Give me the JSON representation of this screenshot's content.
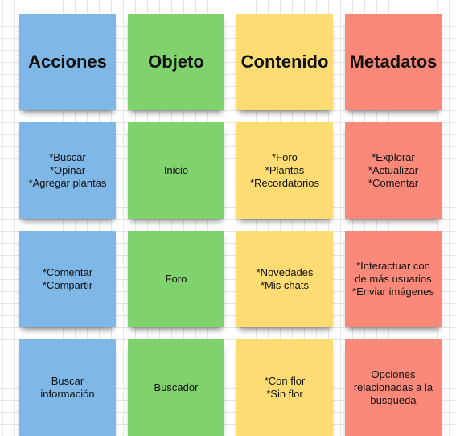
{
  "columns": {
    "acciones": {
      "header": "Acciones",
      "notes": [
        "*Buscar\n*Opinar\n*Agregar plantas",
        "*Comentar\n*Compartir",
        "Buscar\ninformación"
      ]
    },
    "objeto": {
      "header": "Objeto",
      "notes": [
        "Inicio",
        "Foro",
        "Buscador"
      ]
    },
    "contenido": {
      "header": "Contenido",
      "notes": [
        "*Foro\n*Plantas\n*Recordatorios",
        "*Novedades\n*Mis chats",
        "*Con flor\n*Sin flor"
      ]
    },
    "metadatos": {
      "header": "Metadatos",
      "notes": [
        "*Explorar\n*Actualizar\n*Comentar",
        "*Interactuar con\nde más usuarios\n*Enviar imágenes",
        "Opciones\nrelacionadas a la\nbusqueda"
      ]
    }
  },
  "colors": {
    "acciones": "#7fb7e6",
    "objeto": "#7fd26c",
    "contenido": "#fedc74",
    "metadatos": "#fa8979"
  }
}
